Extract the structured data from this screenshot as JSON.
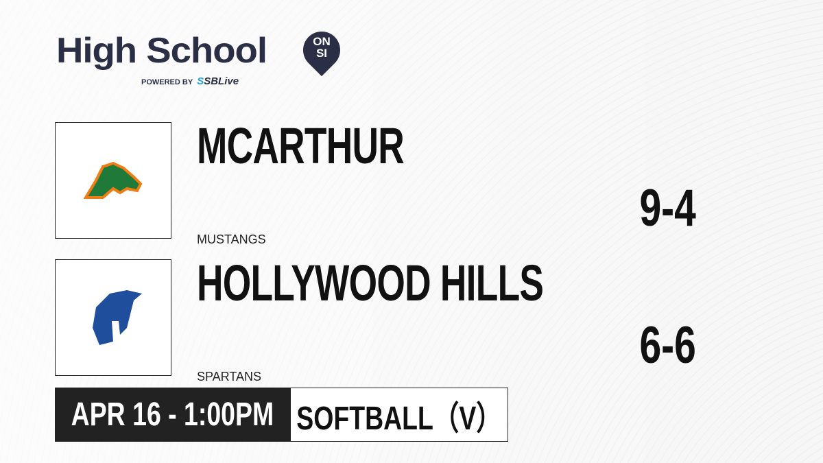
{
  "brand": {
    "title": "High School",
    "badge_top": "ON",
    "badge_bottom": "SI",
    "powered_by": "POWERED BY",
    "partner_prefix": "S",
    "partner": "SBLive"
  },
  "teams": [
    {
      "name": "MCARTHUR",
      "mascot": "MUSTANGS",
      "record": "9-4",
      "logo_color": "#f07c13",
      "logo_color2": "#1f7a3a"
    },
    {
      "name": "HOLLYWOOD HILLS",
      "mascot": "SPARTANS",
      "record": "6-6",
      "logo_color": "#1f4f9c"
    }
  ],
  "game": {
    "datetime": "APR 16 - 1:00PM",
    "sport": "SOFTBALL（V）"
  }
}
